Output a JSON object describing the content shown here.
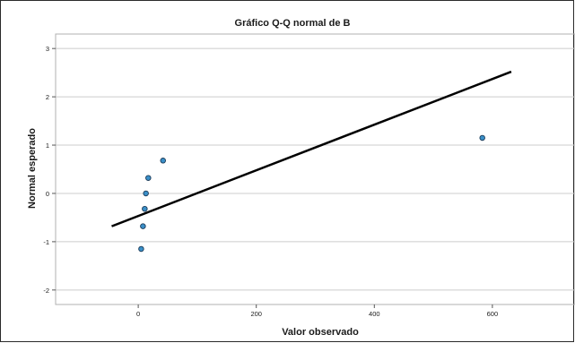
{
  "chart_data": {
    "type": "scatter",
    "title": "Gráfico Q-Q normal de B",
    "xlabel": "Valor observado",
    "ylabel": "Normal esperado",
    "xlim": [
      -140,
      740
    ],
    "ylim": [
      -2.3,
      3.3
    ],
    "x_ticks": [
      0,
      200,
      400,
      600
    ],
    "y_ticks": [
      -2,
      -1,
      0,
      1,
      2,
      3
    ],
    "grid": "horizontal",
    "points": [
      {
        "x": 5,
        "y": -1.15
      },
      {
        "x": 8,
        "y": -0.68
      },
      {
        "x": 11,
        "y": -0.32
      },
      {
        "x": 13,
        "y": 0.0
      },
      {
        "x": 17,
        "y": 0.32
      },
      {
        "x": 42,
        "y": 0.68
      },
      {
        "x": 583,
        "y": 1.15
      }
    ],
    "reference_line": {
      "x": [
        -45,
        632
      ],
      "y": [
        -0.68,
        2.52
      ]
    },
    "colors": {
      "point_fill": "#3a8fc8",
      "point_stroke": "#1b3a57",
      "line": "#000000",
      "grid": "#cccccc"
    }
  }
}
